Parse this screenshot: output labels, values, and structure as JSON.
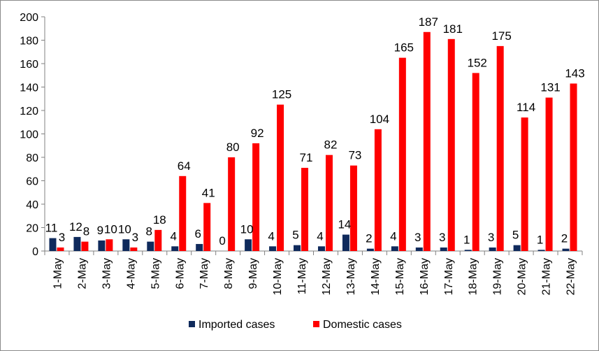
{
  "chart_data": {
    "type": "bar",
    "categories": [
      "1-May",
      "2-May",
      "3-May",
      "4-May",
      "5-May",
      "6-May",
      "7-May",
      "8-May",
      "9-May",
      "10-May",
      "11-May",
      "12-May",
      "13-May",
      "14-May",
      "15-May",
      "16-May",
      "17-May",
      "18-May",
      "19-May",
      "20-May",
      "21-May",
      "22-May"
    ],
    "series": [
      {
        "name": "Imported cases",
        "color": "#0f2a5c",
        "values": [
          11,
          12,
          9,
          10,
          8,
          4,
          6,
          0,
          10,
          4,
          5,
          4,
          14,
          2,
          4,
          3,
          3,
          1,
          3,
          5,
          1,
          2
        ]
      },
      {
        "name": "Domestic cases",
        "color": "#ff0000",
        "values": [
          3,
          8,
          10,
          3,
          18,
          64,
          41,
          80,
          92,
          125,
          71,
          82,
          73,
          104,
          165,
          187,
          181,
          152,
          175,
          114,
          131,
          143
        ]
      }
    ],
    "ylim": [
      0,
      200
    ],
    "yticks": [
      0,
      20,
      40,
      60,
      80,
      100,
      120,
      140,
      160,
      180,
      200
    ],
    "title": "",
    "xlabel": "",
    "ylabel": "",
    "grid": false,
    "legend_position": "bottom"
  }
}
